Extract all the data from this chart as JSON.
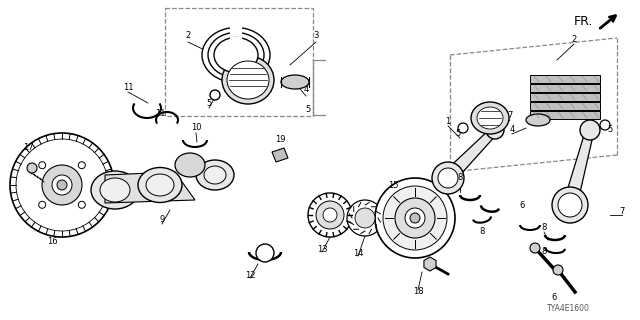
{
  "background_color": "#ffffff",
  "diagram_id_text": "TYA4E1600",
  "figsize": [
    6.4,
    3.2
  ],
  "dpi": 100,
  "fr_text": "FR.",
  "label_fontsize": 6.0,
  "small_fontsize": 5.5
}
